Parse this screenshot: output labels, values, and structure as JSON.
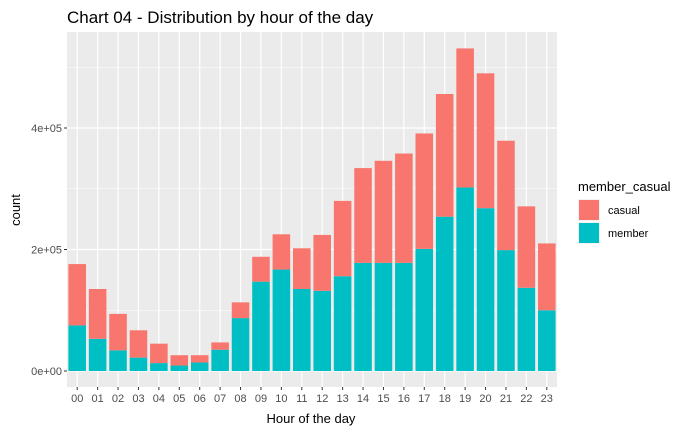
{
  "chart_data": {
    "type": "bar",
    "stacked": true,
    "title": "Chart 04 - Distribution by hour of the day",
    "xlabel": "Hour of the day",
    "ylabel": "count",
    "categories": [
      "00",
      "01",
      "02",
      "03",
      "04",
      "05",
      "06",
      "07",
      "08",
      "09",
      "10",
      "11",
      "12",
      "13",
      "14",
      "15",
      "16",
      "17",
      "18",
      "19",
      "20",
      "21",
      "22",
      "23"
    ],
    "series": [
      {
        "name": "member",
        "color": "#00BFC4",
        "values": [
          75000,
          53000,
          34000,
          22000,
          13000,
          9000,
          14000,
          35000,
          87000,
          147000,
          167000,
          135000,
          132000,
          156000,
          178000,
          178000,
          178000,
          201000,
          254000,
          302000,
          268000,
          199000,
          137000,
          100000
        ]
      },
      {
        "name": "casual",
        "color": "#F8766D",
        "values": [
          101000,
          82000,
          60000,
          45000,
          32000,
          17000,
          12000,
          12000,
          26000,
          41000,
          58000,
          67000,
          92000,
          124000,
          156000,
          168000,
          180000,
          190000,
          202000,
          229000,
          222000,
          180000,
          134000,
          110000
        ]
      }
    ],
    "ylim": [
      0,
      560000
    ],
    "yticks": [
      0,
      200000,
      400000
    ],
    "ytick_labels": [
      "0e+00",
      "2e+05",
      "4e+05"
    ],
    "grid": true,
    "legend": {
      "title": "member_casual",
      "position": "right",
      "entries": [
        "casual",
        "member"
      ]
    }
  }
}
